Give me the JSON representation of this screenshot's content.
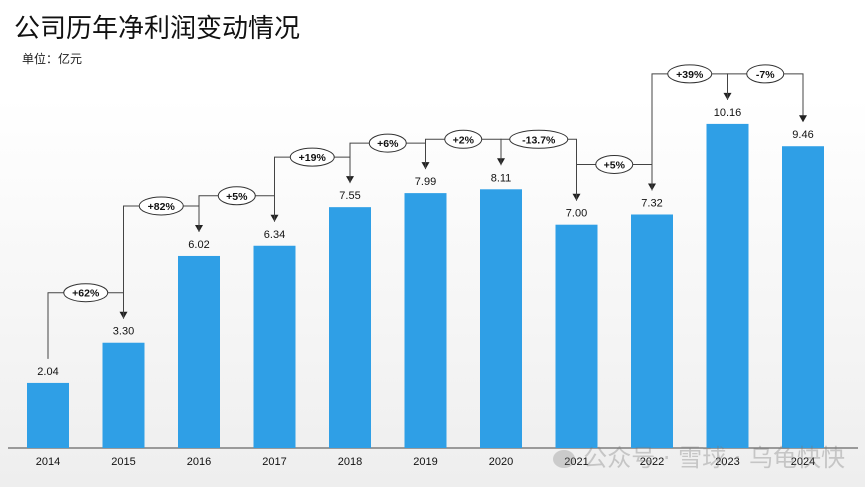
{
  "title": "公司历年净利润变动情况",
  "unit_label": "单位：亿元",
  "watermark": "公众号 · 雪球 · 乌龟快快",
  "colors": {
    "bar": "#2f9fe6",
    "axis": "#444444",
    "text": "#111111"
  },
  "chart_data": {
    "type": "bar",
    "title": "公司历年净利润变动情况",
    "ylabel": "单位：亿元",
    "categories": [
      "2014",
      "2015",
      "2016",
      "2017",
      "2018",
      "2019",
      "2020",
      "2021",
      "2022",
      "2023",
      "2024"
    ],
    "values": [
      2.04,
      3.3,
      6.02,
      6.34,
      7.55,
      7.99,
      8.11,
      7.0,
      7.32,
      10.16,
      9.46
    ],
    "value_labels": [
      "2.04",
      "3.30",
      "6.02",
      "6.34",
      "7.55",
      "7.99",
      "8.11",
      "7.00",
      "7.32",
      "10.16",
      "9.46"
    ],
    "changes": [
      "+62%",
      "+82%",
      "+5%",
      "+19%",
      "+6%",
      "+2%",
      "-13.7%",
      "+5%",
      "+39%",
      "-7%"
    ],
    "ylim": [
      0,
      11
    ],
    "grid": false,
    "legend": "none"
  }
}
